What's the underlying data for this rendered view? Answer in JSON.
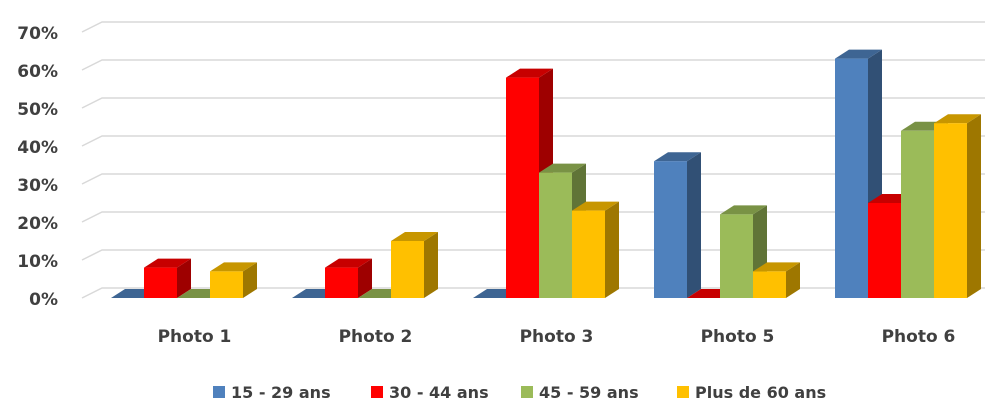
{
  "chart_data": {
    "type": "bar",
    "style": "3d-clustered-column",
    "categories": [
      "Photo 1",
      "Photo 2",
      "Photo 3",
      "Photo 5",
      "Photo 6"
    ],
    "series": [
      {
        "name": "15 - 29 ans",
        "color": "#4F81BD",
        "values": [
          0,
          0,
          0,
          36,
          63
        ]
      },
      {
        "name": "30 - 44 ans",
        "color": "#FF0000",
        "values": [
          8,
          8,
          58,
          0,
          25
        ]
      },
      {
        "name": "45 - 59 ans",
        "color": "#9BBB59",
        "values": [
          0,
          0,
          33,
          22,
          44
        ]
      },
      {
        "name": "Plus de 60 ans",
        "color": "#FFC000",
        "values": [
          7,
          15,
          23,
          7,
          46
        ]
      }
    ],
    "ylim": [
      0,
      70
    ],
    "yticks": [
      0,
      10,
      20,
      30,
      40,
      50,
      60,
      70
    ],
    "ytick_labels": [
      "0%",
      "10%",
      "20%",
      "30%",
      "40%",
      "50%",
      "60%",
      "70%"
    ],
    "grid": true,
    "legend": "bottom"
  }
}
